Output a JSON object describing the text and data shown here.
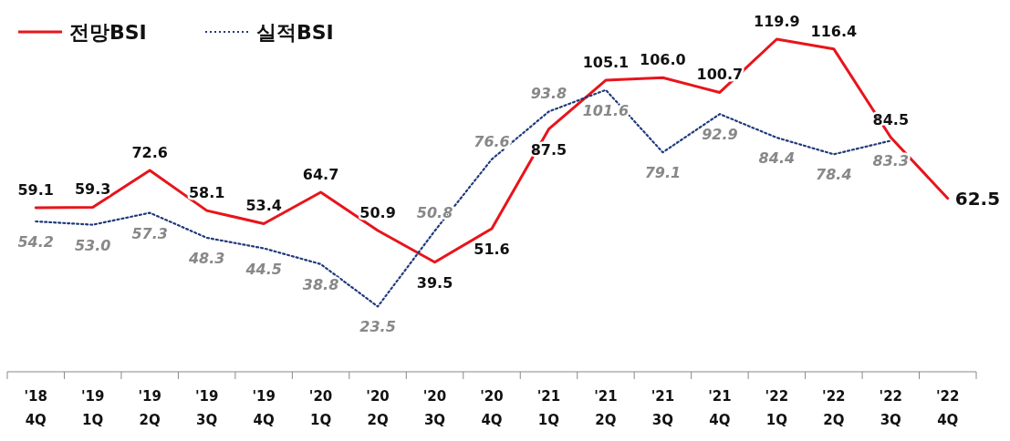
{
  "chart_data": {
    "type": "line",
    "categories": [
      "'18 4Q",
      "'19 1Q",
      "'19 2Q",
      "'19 3Q",
      "'19 4Q",
      "'20 1Q",
      "'20 2Q",
      "'20 3Q",
      "'20 4Q",
      "'21 1Q",
      "'21 2Q",
      "'21 3Q",
      "'21 4Q",
      "'22 1Q",
      "'22 2Q",
      "'22 3Q",
      "'22 4Q"
    ],
    "series": [
      {
        "name": "전망BSI",
        "color": "#e8141b",
        "line_style": "solid",
        "values": [
          59.1,
          59.3,
          72.6,
          58.1,
          53.4,
          64.7,
          50.9,
          39.5,
          51.6,
          87.5,
          105.1,
          106.0,
          100.7,
          119.9,
          116.4,
          84.5,
          62.5
        ],
        "value_labels": [
          "59.1",
          "59.3",
          "72.6",
          "58.1",
          "53.4",
          "64.7",
          "50.9",
          "39.5",
          "51.6",
          "87.5",
          "105.1",
          "106.0",
          "100.7",
          "119.9",
          "116.4",
          "84.5",
          "62.5"
        ]
      },
      {
        "name": "실적BSI",
        "color": "#1f3a7a",
        "line_style": "dotted",
        "values": [
          54.2,
          53.0,
          57.3,
          48.3,
          44.5,
          38.8,
          23.5,
          50.8,
          76.6,
          93.8,
          101.6,
          79.1,
          92.9,
          84.4,
          78.4,
          83.3,
          null
        ],
        "value_labels": [
          "54.2",
          "53.0",
          "57.3",
          "48.3",
          "44.5",
          "38.8",
          "23.5",
          "50.8",
          "76.6",
          "93.8",
          "101.6",
          "79.1",
          "92.9",
          "84.4",
          "78.4",
          "83.3",
          null
        ]
      }
    ],
    "legend": "top left",
    "grid": false
  }
}
